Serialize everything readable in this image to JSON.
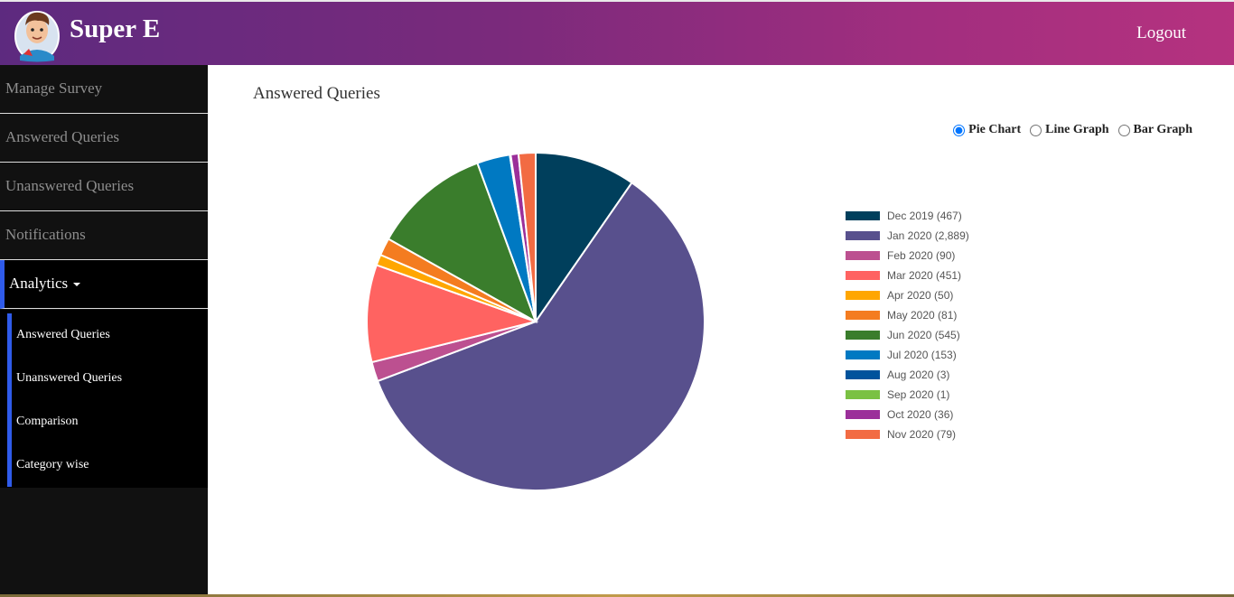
{
  "header": {
    "brand": "Super E",
    "logout": "Logout"
  },
  "sidebar": {
    "items": [
      {
        "label": "Manage Survey"
      },
      {
        "label": "Answered Queries"
      },
      {
        "label": "Unanswered Queries"
      },
      {
        "label": "Notifications"
      },
      {
        "label": "Analytics"
      }
    ],
    "submenu": [
      {
        "label": "Answered Queries"
      },
      {
        "label": "Unanswered Queries"
      },
      {
        "label": "Comparison"
      },
      {
        "label": "Category wise"
      }
    ]
  },
  "main": {
    "title": "Answered Queries",
    "chart_options": [
      {
        "label": "Pie Chart",
        "selected": true
      },
      {
        "label": "Line Graph",
        "selected": false
      },
      {
        "label": "Bar Graph",
        "selected": false
      }
    ]
  },
  "chart_data": {
    "type": "pie",
    "categories": [
      "Dec 2019",
      "Jan 2020",
      "Feb 2020",
      "Mar 2020",
      "Apr 2020",
      "May 2020",
      "Jun 2020",
      "Jul 2020",
      "Aug 2020",
      "Sep 2020",
      "Oct 2020",
      "Nov 2020"
    ],
    "values": [
      467,
      2889,
      90,
      451,
      50,
      81,
      545,
      153,
      3,
      1,
      36,
      79
    ],
    "legend_labels": [
      "Dec 2019 (467)",
      "Jan 2020 (2,889)",
      "Feb 2020 (90)",
      "Mar 2020 (451)",
      "Apr 2020 (50)",
      "May 2020 (81)",
      "Jun 2020 (545)",
      "Jul 2020 (153)",
      "Aug 2020 (3)",
      "Sep 2020 (1)",
      "Oct 2020 (36)",
      "Nov 2020 (79)"
    ],
    "colors": [
      "#003f5c",
      "#58508d",
      "#bc5090",
      "#ff6361",
      "#ffa600",
      "#f47c20",
      "#3a7d2c",
      "#0079c2",
      "#00539c",
      "#7ac143",
      "#9b2f9a",
      "#f26b43"
    ],
    "legend_position": "right"
  }
}
